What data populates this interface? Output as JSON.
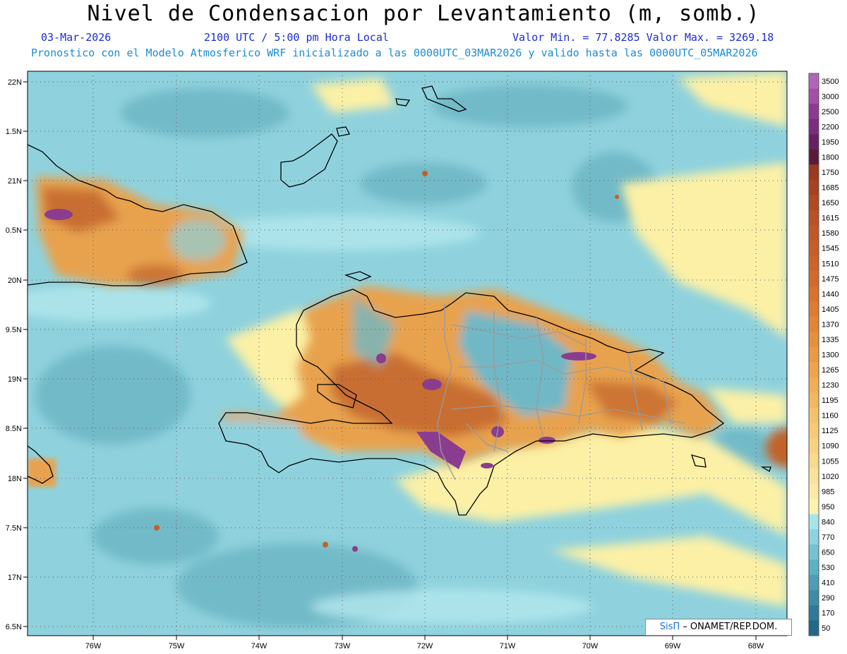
{
  "title": "Nivel de Condensacion por Levantamiento (m, somb.)",
  "header": {
    "date": "03-Mar-2026",
    "time": "2100 UTC / 5:00 pm Hora Local",
    "minmax": "Valor Min. = 77.8285  Valor Max. = 3269.18",
    "model_line": "Pronostico con el Modelo Atmosferico WRF inicializado a las 0000UTC_03MAR2026 y valido hasta las  0000UTC_05MAR2026"
  },
  "axes": {
    "lat_labels": [
      "22N",
      "1.5N",
      "21N",
      "0.5N",
      "20N",
      "9.5N",
      "19N",
      "8.5N",
      "18N",
      "7.5N",
      "17N",
      "6.5N"
    ],
    "lon_labels": [
      "76W",
      "75W",
      "74W",
      "73W",
      "72W",
      "71W",
      "70W",
      "69W",
      "68W"
    ]
  },
  "colorbar": {
    "levels": [
      "3500",
      "3000",
      "2500",
      "2200",
      "1950",
      "1800",
      "1750",
      "1685",
      "1650",
      "1615",
      "1580",
      "1545",
      "1510",
      "1475",
      "1440",
      "1405",
      "1370",
      "1335",
      "1300",
      "1265",
      "1230",
      "1195",
      "1160",
      "1125",
      "1090",
      "1055",
      "1020",
      "985",
      "950",
      "840",
      "770",
      "650",
      "530",
      "410",
      "290",
      "170",
      "50"
    ],
    "colors": [
      "#b266b8",
      "#a44fa6",
      "#8c3a92",
      "#7a2c7e",
      "#66215f",
      "#5a1a3c",
      "#9a3a1e",
      "#a64220",
      "#b04a22",
      "#b85224",
      "#c05826",
      "#c65e28",
      "#cc642a",
      "#d26a2c",
      "#d8722e",
      "#de7c32",
      "#e28636",
      "#e6903c",
      "#ea9a44",
      "#eea44c",
      "#f0ae56",
      "#f2b860",
      "#f4c26a",
      "#f6ca76",
      "#f7d282",
      "#f8da8e",
      "#f9e29a",
      "#faeaa6",
      "#fbf2b0",
      "#a8e4ec",
      "#8cd4e0",
      "#74c2d2",
      "#5eb0c4",
      "#4c9eb6",
      "#3c8ca8",
      "#2e7a9a",
      "#22688a"
    ]
  },
  "credit": {
    "brand": "SisΠ",
    "text": "– ONAMET/REP.DOM."
  },
  "palette": {
    "ocean": "#8fd2dd",
    "ocean_dark": "#6fb8c6",
    "land_orange": "#e8a24e",
    "land_brown": "#c0622a",
    "purple": "#8a3d8e",
    "yellow": "#fbf0a6"
  }
}
